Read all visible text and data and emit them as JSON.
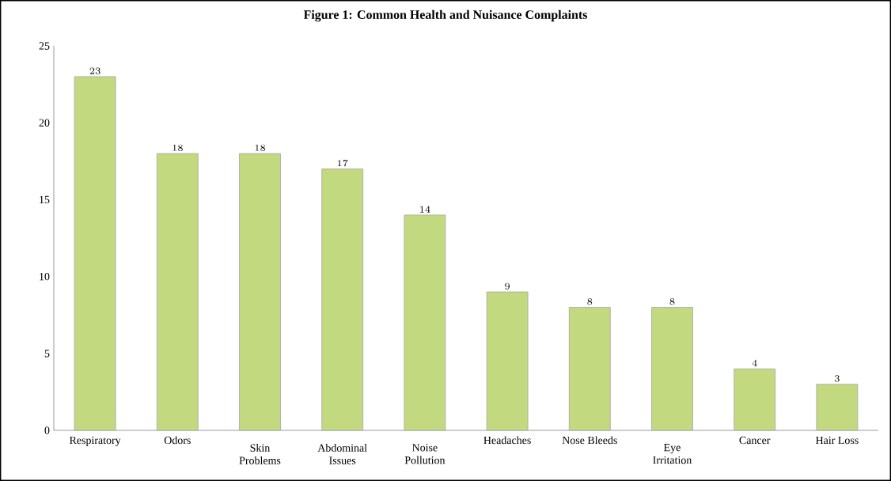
{
  "chart_data": {
    "type": "bar",
    "title": "Figure 1: Common Health and Nuisance Complaints",
    "categories": [
      "Respiratory",
      "Odors",
      "Skin Problems",
      "Abdominal Issues",
      "Noise Pollution",
      "Headaches",
      "Nose Bleeds",
      "Eye Irritation",
      "Cancer",
      "Hair Loss"
    ],
    "values": [
      23,
      18,
      18,
      17,
      14,
      9,
      8,
      8,
      4,
      3
    ],
    "color": "#c3d97f",
    "ylim": [
      0,
      25
    ],
    "yticks": [
      0,
      5,
      10,
      15,
      20,
      25
    ],
    "data_labels": true
  }
}
